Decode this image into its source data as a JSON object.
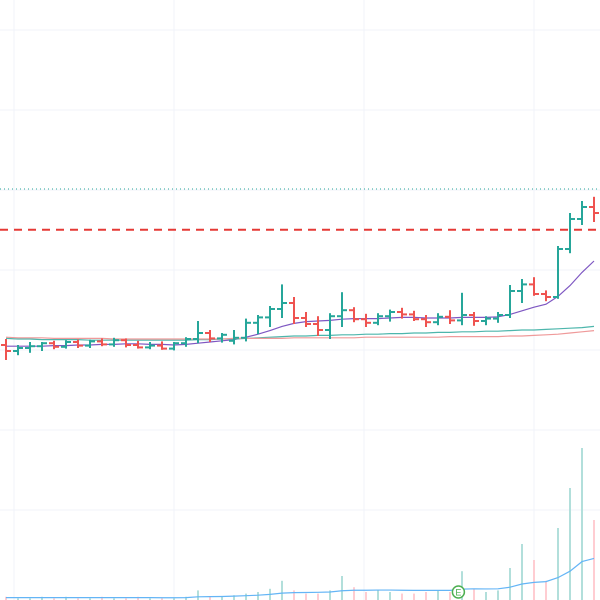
{
  "chart_data": {
    "type": "ohlc",
    "ylim": [
      0,
      100
    ],
    "up_color": "#26a69a",
    "down_color": "#ef5350",
    "open": [
      42.5,
      41.5,
      42,
      42.3,
      42.8,
      42.2,
      43,
      42.4,
      43.1,
      42.6,
      43.3,
      42.5,
      42.1,
      42.4,
      41.9,
      42.8,
      43.5,
      44.5,
      43.6,
      43.2,
      43.7,
      46.2,
      47.1,
      48.5,
      49.5,
      47,
      46,
      45,
      47.3,
      48.3,
      46.8,
      46.2,
      47.3,
      48,
      47.6,
      46.8,
      46.3,
      47.2,
      46.6,
      47.5,
      46.5,
      46.9,
      47.5,
      51.5,
      52.6,
      51,
      50.5,
      58.5,
      63.5,
      65.5
    ],
    "high": [
      43.5,
      42.5,
      43,
      43,
      43.2,
      43.3,
      43.4,
      43.4,
      43.6,
      43.7,
      43.6,
      43.2,
      43,
      43.1,
      43,
      43.8,
      46.5,
      45,
      44.5,
      45,
      46.9,
      47.5,
      49,
      52.6,
      50.5,
      48,
      47.3,
      47.8,
      51.3,
      48.8,
      47.7,
      47.8,
      48.4,
      48.7,
      48.2,
      47.5,
      47.8,
      48.3,
      51.2,
      48,
      47.3,
      48,
      52.5,
      53.5,
      53.8,
      51.6,
      59,
      64.5,
      66.5,
      67.2
    ],
    "low": [
      40,
      40.8,
      41.2,
      41.5,
      41.8,
      41.9,
      42,
      42,
      42.3,
      42.2,
      42.1,
      41.9,
      41.8,
      41.7,
      41.6,
      42.2,
      42.8,
      43,
      42.9,
      42.6,
      43.1,
      44.3,
      45.5,
      47,
      46,
      45.5,
      44,
      43.5,
      45.5,
      46.3,
      45.5,
      45.8,
      46.4,
      46.9,
      46.5,
      45.5,
      45.8,
      46,
      45.8,
      45.7,
      45.8,
      46.2,
      47,
      49.5,
      50.7,
      49.8,
      50.2,
      57.8,
      62.5,
      63
    ],
    "close": [
      41.5,
      42,
      42.3,
      42.8,
      42.2,
      43,
      42.4,
      43.1,
      42.6,
      43.3,
      42.5,
      42.1,
      42.4,
      41.9,
      42.8,
      43.5,
      44.5,
      43.6,
      44.2,
      43.7,
      46.2,
      47.1,
      48.5,
      49.5,
      47,
      46,
      45,
      47.3,
      48.3,
      46.8,
      46.2,
      47.3,
      48,
      47.6,
      46.8,
      46.3,
      47.2,
      46.6,
      47.5,
      46.5,
      46.9,
      47.5,
      51.5,
      52.6,
      51,
      50.5,
      58.5,
      63.5,
      65.5,
      64.5
    ],
    "moving_averages": [
      {
        "color": "#7e57c2",
        "values": [
          42.3,
          42.3,
          42.3,
          42.3,
          42.4,
          42.4,
          42.5,
          42.5,
          42.6,
          42.6,
          42.7,
          42.7,
          42.6,
          42.6,
          42.5,
          42.6,
          42.8,
          43,
          43.2,
          43.4,
          43.8,
          44.3,
          44.9,
          45.6,
          46.1,
          46.4,
          46.5,
          46.6,
          46.8,
          46.9,
          46.9,
          46.9,
          47,
          47.1,
          47.1,
          47,
          47,
          47,
          47.1,
          47.1,
          47.1,
          47.2,
          47.6,
          48.2,
          48.8,
          49.3,
          50.6,
          52.4,
          54.6,
          56.5
        ]
      },
      {
        "color": "#4db6ac",
        "values": [
          43.6,
          43.5,
          43.5,
          43.4,
          43.4,
          43.4,
          43.4,
          43.3,
          43.3,
          43.3,
          43.3,
          43.3,
          43.3,
          43.3,
          43.3,
          43.3,
          43.4,
          43.4,
          43.5,
          43.5,
          43.6,
          43.7,
          43.8,
          43.9,
          44,
          44,
          44.1,
          44.1,
          44.2,
          44.2,
          44.3,
          44.3,
          44.4,
          44.4,
          44.5,
          44.5,
          44.6,
          44.6,
          44.7,
          44.7,
          44.8,
          44.8,
          44.9,
          45,
          45,
          45.1,
          45.2,
          45.3,
          45.4,
          45.6
        ]
      },
      {
        "color": "#ef9a9a",
        "values": [
          43.8,
          43.7,
          43.7,
          43.7,
          43.6,
          43.6,
          43.6,
          43.6,
          43.6,
          43.5,
          43.5,
          43.5,
          43.5,
          43.5,
          43.5,
          43.5,
          43.5,
          43.5,
          43.5,
          43.6,
          43.6,
          43.6,
          43.6,
          43.6,
          43.7,
          43.7,
          43.7,
          43.7,
          43.7,
          43.7,
          43.8,
          43.8,
          43.8,
          43.8,
          43.8,
          43.8,
          43.8,
          43.9,
          43.9,
          43.9,
          43.9,
          43.9,
          44,
          44,
          44.1,
          44.2,
          44.3,
          44.5,
          44.7,
          44.9
        ]
      }
    ],
    "volume": {
      "ylim": [
        0,
        100
      ],
      "up_color": "#b2dfdb",
      "down_color": "#ffcdd2",
      "values": [
        2,
        1,
        1,
        2,
        1,
        2,
        1,
        1,
        2,
        1,
        1,
        2,
        1,
        1,
        1,
        2,
        6,
        2,
        2,
        3,
        4,
        5,
        7,
        12,
        6,
        4,
        4,
        6,
        15,
        8,
        5,
        6,
        5,
        4,
        4,
        5,
        6,
        5,
        18,
        7,
        5,
        6,
        20,
        35,
        25,
        12,
        45,
        70,
        95,
        50
      ],
      "ma_color": "#64b5f6",
      "ma_values": [
        1.5,
        1.5,
        1.5,
        1.5,
        1.5,
        1.5,
        1.5,
        1.5,
        1.5,
        1.5,
        1.5,
        1.5,
        1.5,
        1.4,
        1.4,
        1.5,
        2,
        2.1,
        2.2,
        2.4,
        2.7,
        3,
        3.5,
        4.3,
        4.6,
        4.7,
        4.8,
        5,
        5.8,
        6.1,
        6.1,
        6.2,
        6.2,
        6.1,
        6,
        6,
        6,
        6,
        6.8,
        7,
        6.9,
        7,
        8,
        10,
        11,
        11.5,
        14,
        18,
        24,
        26
      ]
    },
    "price_lines": [
      {
        "value": 61.7,
        "color": "#e53935",
        "style": "dashed"
      },
      {
        "value": 68.5,
        "color": "#26a69a",
        "style": "dotted"
      }
    ],
    "events": [
      {
        "index": 37.7,
        "label": "E",
        "color": "#4caf50"
      }
    ]
  }
}
